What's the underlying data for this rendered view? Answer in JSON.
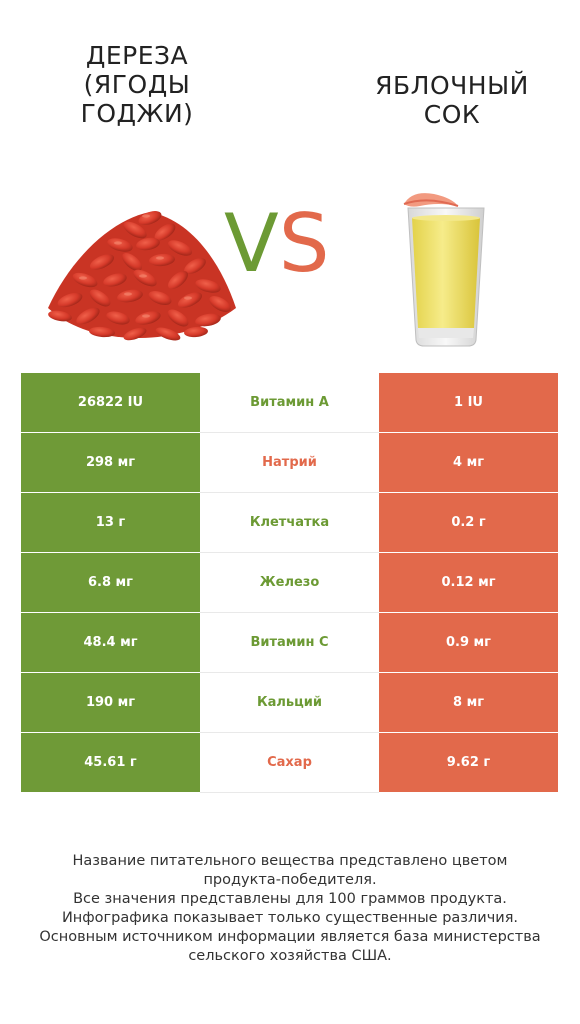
{
  "left_product": {
    "title_lines": [
      "ДЕРЕЗА",
      "(ЯГОДЫ",
      "ГОДЖИ)"
    ],
    "color": "#6f9a37"
  },
  "right_product": {
    "title_lines": [
      "ЯБЛОЧНЫЙ",
      "СОК"
    ],
    "color": "#e2694b"
  },
  "vs": {
    "v": "V",
    "s": "S"
  },
  "rows": [
    {
      "left": "26822 IU",
      "name": "Витамин A",
      "right": "1 IU",
      "winner": "left"
    },
    {
      "left": "298 мг",
      "name": "Натрий",
      "right": "4 мг",
      "winner": "right"
    },
    {
      "left": "13 г",
      "name": "Клетчатка",
      "right": "0.2 г",
      "winner": "left"
    },
    {
      "left": "6.8 мг",
      "name": "Железо",
      "right": "0.12 мг",
      "winner": "left"
    },
    {
      "left": "48.4 мг",
      "name": "Витамин C",
      "right": "0.9 мг",
      "winner": "left"
    },
    {
      "left": "190 мг",
      "name": "Кальций",
      "right": "8 мг",
      "winner": "left"
    },
    {
      "left": "45.61 г",
      "name": "Сахар",
      "right": "9.62 г",
      "winner": "right"
    }
  ],
  "footer_lines": [
    "Название питательного вещества представлено цветом",
    "продукта-победителя.",
    "Все значения представлены для 100 граммов продукта.",
    "Инфографика показывает только существенные различия.",
    "Основным источником информации является база министерства",
    "сельского хозяйства США."
  ]
}
